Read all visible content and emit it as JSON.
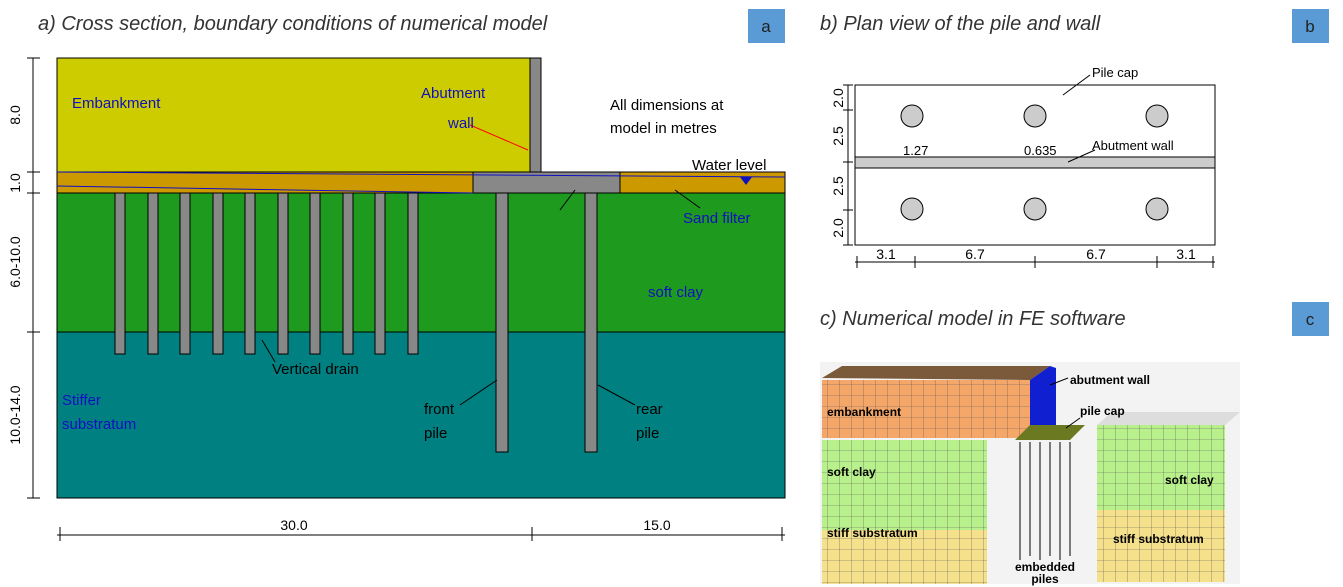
{
  "panel_a": {
    "title": "a) Cross section, boundary conditions of numerical model",
    "badge": "a",
    "labels": {
      "embankment": "Embankment",
      "abutment_wall": [
        "Abutment",
        "wall"
      ],
      "dimensions_note": [
        "All dimensions at",
        "model in metres"
      ],
      "water_level": "Water level",
      "sand_filter": "Sand filter",
      "soft_clay": "soft clay",
      "vertical_drain": "Vertical drain",
      "substratum": [
        "Stiffer",
        "substratum"
      ],
      "front_pile": [
        "front",
        "pile"
      ],
      "rear_pile": [
        "rear",
        "pile"
      ]
    },
    "depth_dims": [
      "8.0",
      "1.0",
      "6.0-10.0",
      "10.0-14.0"
    ],
    "width_dims": [
      "30.0",
      "15.0"
    ]
  },
  "panel_b": {
    "title": "b) Plan view of the pile and wall",
    "badge": "b",
    "labels": {
      "pile_cap": "Pile cap",
      "abutment_wall": "Abutment wall",
      "pile_diameter": "1.27",
      "wall_thickness": "0.635"
    },
    "depth_dims": [
      "2.0",
      "2.5",
      "2.5",
      "2.0"
    ],
    "width_dims": [
      "3.1",
      "6.7",
      "6.7",
      "3.1"
    ]
  },
  "panel_c": {
    "title": "c) Numerical model in FE software",
    "badge": "c",
    "labels": {
      "abutment_wall": "abutment wall",
      "embankment": "embankment",
      "pile_cap": "pile cap",
      "soft_clay_left": "soft clay",
      "soft_clay_right": "soft clay",
      "stiff_left": "stiff substratum",
      "stiff_right": "stiff substratum",
      "embedded_piles": [
        "embedded",
        "piles"
      ]
    }
  }
}
